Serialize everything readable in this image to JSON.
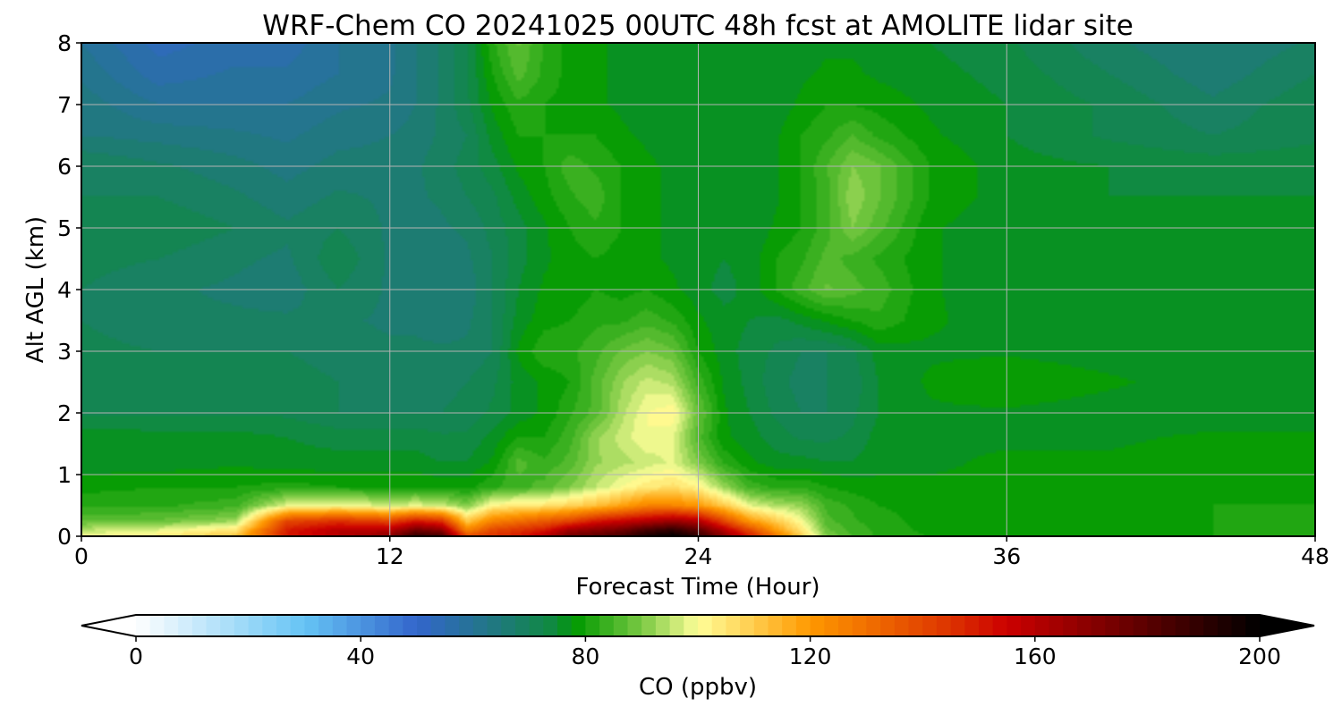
{
  "chart_data": {
    "type": "heatmap",
    "title": "WRF-Chem CO  20241025 00UTC 48h fcst at AMOLITE lidar site",
    "xlabel": "Forecast Time (Hour)",
    "ylabel": "Alt AGL (km)",
    "xlim": [
      0,
      48
    ],
    "ylim": [
      0,
      8
    ],
    "xticks": [
      "0",
      "12",
      "24",
      "36",
      "48"
    ],
    "yticks": [
      "0",
      "1",
      "2",
      "3",
      "4",
      "5",
      "6",
      "7",
      "8"
    ],
    "grid": true,
    "colorbar": {
      "label": "CO  (ppbv)",
      "range": [
        0,
        200
      ],
      "ticks": [
        "0",
        "40",
        "80",
        "120",
        "160",
        "200"
      ],
      "extend": "both",
      "colors": {
        "0": "#ffffff",
        "30": "#66c4f5",
        "50": "#3366cc",
        "65": "#1f7a7a",
        "75": "#0e8c3a",
        "78": "#009900",
        "90": "#7ac943",
        "100": "#ffff99",
        "120": "#ff9900",
        "145": "#dd3300",
        "155": "#cc0000",
        "200": "#000000"
      }
    },
    "note_values": "CO mixing ratio (ppbv) read off the colour scale; rows = altitude from ylim[0] to ylim[1], columns = forecast hour from xlim[0] to xlim[1]",
    "x": [
      0,
      3,
      6,
      8,
      10,
      12,
      13,
      14,
      15,
      16,
      17,
      18,
      19,
      20,
      21,
      22,
      23,
      24,
      25,
      26,
      27,
      28,
      29,
      30,
      31,
      33,
      36,
      40,
      44,
      48
    ],
    "y": [
      0,
      0.1,
      0.25,
      0.5,
      0.8,
      1.2,
      1.6,
      2.0,
      2.5,
      3.0,
      3.5,
      4.0,
      4.5,
      5.0,
      5.5,
      6.0,
      6.5,
      7.0,
      7.5,
      8.0
    ],
    "z": [
      [
        99,
        104,
        112,
        150,
        160,
        170,
        190,
        185,
        140,
        145,
        150,
        160,
        175,
        180,
        185,
        195,
        200,
        190,
        170,
        150,
        130,
        110,
        90,
        85,
        82,
        80,
        79,
        79,
        80,
        80
      ],
      [
        95,
        98,
        105,
        150,
        160,
        160,
        175,
        170,
        125,
        140,
        145,
        150,
        165,
        170,
        175,
        185,
        190,
        180,
        160,
        140,
        120,
        105,
        88,
        84,
        82,
        79,
        79,
        79,
        80,
        80
      ],
      [
        87,
        88,
        92,
        140,
        145,
        140,
        150,
        145,
        110,
        125,
        130,
        135,
        140,
        150,
        155,
        160,
        165,
        160,
        140,
        120,
        110,
        100,
        86,
        83,
        81,
        79,
        78,
        79,
        80,
        80
      ],
      [
        82,
        82,
        84,
        98,
        100,
        96,
        98,
        96,
        90,
        102,
        104,
        105,
        108,
        112,
        118,
        125,
        125,
        120,
        110,
        98,
        94,
        92,
        84,
        82,
        80,
        79,
        78,
        79,
        80,
        80
      ],
      [
        79,
        80,
        80,
        81,
        80,
        80,
        80,
        79,
        79,
        82,
        84,
        86,
        90,
        95,
        100,
        104,
        106,
        102,
        92,
        84,
        82,
        82,
        80,
        79,
        78,
        78,
        78,
        79,
        79,
        79
      ],
      [
        76,
        76,
        77,
        76,
        76,
        76,
        76,
        75,
        75,
        78,
        86,
        83,
        86,
        92,
        94,
        96,
        98,
        90,
        82,
        78,
        76,
        76,
        75,
        75,
        77,
        77,
        78,
        78,
        79,
        79
      ],
      [
        77,
        76,
        76,
        75,
        74,
        74,
        74,
        73,
        73,
        76,
        80,
        80,
        84,
        92,
        96,
        100,
        98,
        86,
        78,
        76,
        74,
        72,
        72,
        73,
        76,
        77,
        77,
        77,
        78,
        78
      ],
      [
        72,
        72,
        72,
        72,
        70,
        70,
        70,
        70,
        71,
        73,
        76,
        78,
        82,
        86,
        94,
        100,
        102,
        88,
        78,
        75,
        72,
        70,
        70,
        72,
        75,
        77,
        77,
        76,
        76,
        76
      ],
      [
        72,
        72,
        72,
        71,
        70,
        69,
        69,
        69,
        70,
        72,
        76,
        78,
        80,
        86,
        92,
        96,
        94,
        84,
        77,
        74,
        71,
        69,
        70,
        71,
        75,
        78,
        80,
        78,
        76,
        76
      ],
      [
        71,
        70,
        70,
        70,
        69,
        68,
        68,
        68,
        68,
        70,
        78,
        82,
        82,
        84,
        88,
        90,
        88,
        80,
        76,
        74,
        72,
        70,
        70,
        72,
        76,
        77,
        77,
        76,
        76,
        76
      ],
      [
        70,
        68,
        68,
        68,
        68,
        67,
        67,
        66,
        67,
        70,
        76,
        79,
        80,
        82,
        82,
        84,
        82,
        78,
        76,
        75,
        74,
        76,
        78,
        80,
        82,
        78,
        76,
        75,
        75,
        75
      ],
      [
        70,
        68,
        67,
        66,
        70,
        67,
        66,
        65,
        66,
        70,
        75,
        78,
        78,
        80,
        79,
        80,
        78,
        76,
        74,
        76,
        80,
        84,
        88,
        86,
        84,
        78,
        75,
        75,
        75,
        75
      ],
      [
        71,
        70,
        68,
        67,
        72,
        67,
        66,
        66,
        67,
        70,
        74,
        77,
        79,
        80,
        79,
        78,
        77,
        76,
        75,
        76,
        80,
        82,
        86,
        84,
        82,
        78,
        75,
        75,
        75,
        75
      ],
      [
        72,
        72,
        70,
        68,
        70,
        67,
        66,
        67,
        68,
        71,
        74,
        77,
        80,
        82,
        80,
        78,
        77,
        76,
        75,
        75,
        78,
        80,
        84,
        90,
        86,
        78,
        75,
        75,
        75,
        75
      ],
      [
        70,
        70,
        68,
        66,
        68,
        67,
        67,
        68,
        70,
        72,
        76,
        79,
        82,
        84,
        80,
        78,
        77,
        76,
        75,
        75,
        77,
        80,
        84,
        92,
        88,
        80,
        76,
        75,
        75,
        75
      ],
      [
        70,
        68,
        66,
        64,
        66,
        66,
        67,
        69,
        71,
        74,
        78,
        80,
        84,
        82,
        80,
        78,
        77,
        76,
        75,
        75,
        77,
        80,
        85,
        90,
        88,
        80,
        76,
        75,
        74,
        74
      ],
      [
        65,
        64,
        63,
        62,
        64,
        65,
        66,
        68,
        70,
        76,
        80,
        80,
        80,
        80,
        78,
        77,
        76,
        75,
        75,
        75,
        77,
        80,
        82,
        85,
        82,
        78,
        75,
        72,
        70,
        72
      ],
      [
        64,
        60,
        60,
        60,
        62,
        63,
        65,
        68,
        72,
        78,
        82,
        80,
        79,
        78,
        77,
        76,
        75,
        75,
        75,
        75,
        76,
        78,
        80,
        80,
        79,
        77,
        75,
        72,
        68,
        72
      ],
      [
        62,
        56,
        58,
        58,
        60,
        62,
        65,
        68,
        72,
        80,
        86,
        82,
        79,
        78,
        77,
        76,
        75,
        75,
        75,
        75,
        76,
        77,
        78,
        78,
        77,
        76,
        74,
        70,
        66,
        70
      ],
      [
        60,
        54,
        56,
        56,
        60,
        62,
        65,
        68,
        72,
        82,
        88,
        82,
        79,
        78,
        77,
        76,
        75,
        75,
        75,
        75,
        76,
        76,
        77,
        77,
        76,
        75,
        73,
        68,
        65,
        68
      ]
    ]
  }
}
